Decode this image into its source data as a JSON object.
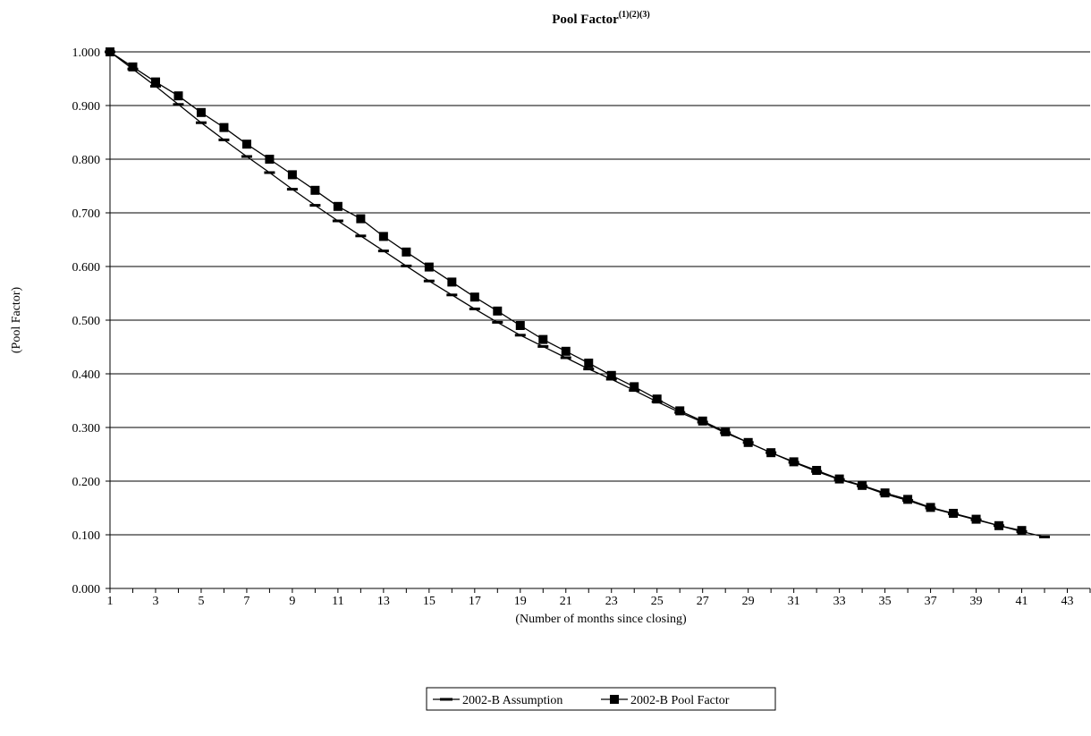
{
  "chart_data": {
    "type": "line",
    "title": "Pool Factor",
    "title_superscript": "(1)(2)(3)",
    "xlabel": "(Number of months since closing)",
    "ylabel": "(Pool Factor)",
    "xlim": [
      1,
      44
    ],
    "ylim": [
      0,
      1
    ],
    "x_tick_labels": [
      "1",
      "3",
      "5",
      "7",
      "9",
      "11",
      "13",
      "15",
      "17",
      "19",
      "21",
      "23",
      "25",
      "27",
      "29",
      "31",
      "33",
      "35",
      "37",
      "39",
      "41",
      "43"
    ],
    "y_tick_labels": [
      "0.000",
      "0.100",
      "0.200",
      "0.300",
      "0.400",
      "0.500",
      "0.600",
      "0.700",
      "0.800",
      "0.900",
      "1.000"
    ],
    "grid": "horizontal",
    "legend_position": "bottom",
    "series": [
      {
        "name": "2002-B Assumption",
        "marker": "dash",
        "x": [
          1,
          2,
          3,
          4,
          5,
          6,
          7,
          8,
          9,
          10,
          11,
          12,
          13,
          14,
          15,
          16,
          17,
          18,
          19,
          20,
          21,
          22,
          23,
          24,
          25,
          26,
          27,
          28,
          29,
          30,
          31,
          32,
          33,
          34,
          35,
          36,
          37,
          38,
          39,
          40,
          41,
          42
        ],
        "values": [
          1.0,
          0.968,
          0.936,
          0.902,
          0.868,
          0.836,
          0.805,
          0.775,
          0.744,
          0.714,
          0.685,
          0.657,
          0.629,
          0.601,
          0.573,
          0.547,
          0.521,
          0.496,
          0.472,
          0.451,
          0.43,
          0.409,
          0.39,
          0.369,
          0.348,
          0.328,
          0.31,
          0.29,
          0.272,
          0.253,
          0.235,
          0.218,
          0.203,
          0.191,
          0.176,
          0.164,
          0.15,
          0.139,
          0.128,
          0.117,
          0.106,
          0.096
        ]
      },
      {
        "name": "2002-B Pool Factor",
        "marker": "square",
        "x": [
          1,
          2,
          3,
          4,
          5,
          6,
          7,
          8,
          9,
          10,
          11,
          12,
          13,
          14,
          15,
          16,
          17,
          18,
          19,
          20,
          21,
          22,
          23,
          24,
          25,
          26,
          27,
          28,
          29,
          30,
          31,
          32,
          33,
          34,
          35,
          36,
          37,
          38,
          39,
          40,
          41
        ],
        "values": [
          1.0,
          0.972,
          0.944,
          0.918,
          0.887,
          0.859,
          0.828,
          0.8,
          0.771,
          0.742,
          0.712,
          0.689,
          0.656,
          0.627,
          0.599,
          0.571,
          0.543,
          0.517,
          0.49,
          0.464,
          0.442,
          0.42,
          0.397,
          0.376,
          0.353,
          0.331,
          0.312,
          0.292,
          0.272,
          0.253,
          0.236,
          0.22,
          0.204,
          0.192,
          0.178,
          0.166,
          0.151,
          0.14,
          0.129,
          0.117,
          0.108
        ]
      }
    ]
  }
}
